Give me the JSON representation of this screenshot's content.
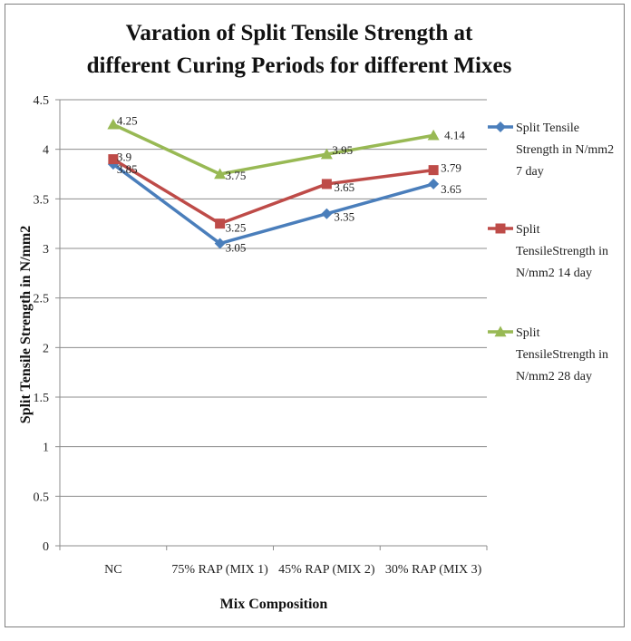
{
  "chart_data": {
    "type": "line",
    "title_lines": [
      "Varation of Split Tensile Strength at",
      "different Curing Periods for different Mixes"
    ],
    "xlabel": "Mix Composition",
    "ylabel": "Split Tensile Strength in N/mm2",
    "categories": [
      "NC",
      "75% RAP (MIX 1)",
      "45% RAP (MIX 2)",
      "30% RAP (MIX 3)"
    ],
    "ylim": [
      0,
      4.5
    ],
    "ytick_values": [
      0,
      0.5,
      1,
      1.5,
      2,
      2.5,
      3,
      3.5,
      4,
      4.5
    ],
    "ytick_labels": [
      "0",
      "0.5",
      "1",
      "1.5",
      "2",
      "2.5",
      "3",
      "3.5",
      "4",
      "4.5"
    ],
    "grid": true,
    "legend_position": "right",
    "series": [
      {
        "name": "Split Tensile Strength in N/mm2 7 day",
        "legend_lines": [
          "Split Tensile",
          "Strength in N/mm2",
          "7 day"
        ],
        "color": "#4a7ebb",
        "marker": "diamond",
        "values": [
          3.85,
          3.05,
          3.35,
          3.65
        ],
        "labels": [
          "3.85",
          "3.05",
          "3.35",
          "3.65"
        ]
      },
      {
        "name": "Split TensileStrength in N/mm2 14 day",
        "legend_lines": [
          "Split",
          "TensileStrength in",
          "N/mm2 14 day"
        ],
        "color": "#be4b48",
        "marker": "square",
        "values": [
          3.9,
          3.25,
          3.65,
          3.79
        ],
        "labels": [
          "3.9",
          "3.25",
          "3.65",
          "3.79"
        ]
      },
      {
        "name": "Split TensileStrength in N/mm2 28 day",
        "legend_lines": [
          "Split",
          "TensileStrength in",
          "N/mm2 28 day"
        ],
        "color": "#98b954",
        "marker": "triangle",
        "values": [
          4.25,
          3.75,
          3.95,
          4.14
        ],
        "labels": [
          "4.25",
          "3.75",
          "3.95",
          "4.14"
        ]
      }
    ]
  }
}
